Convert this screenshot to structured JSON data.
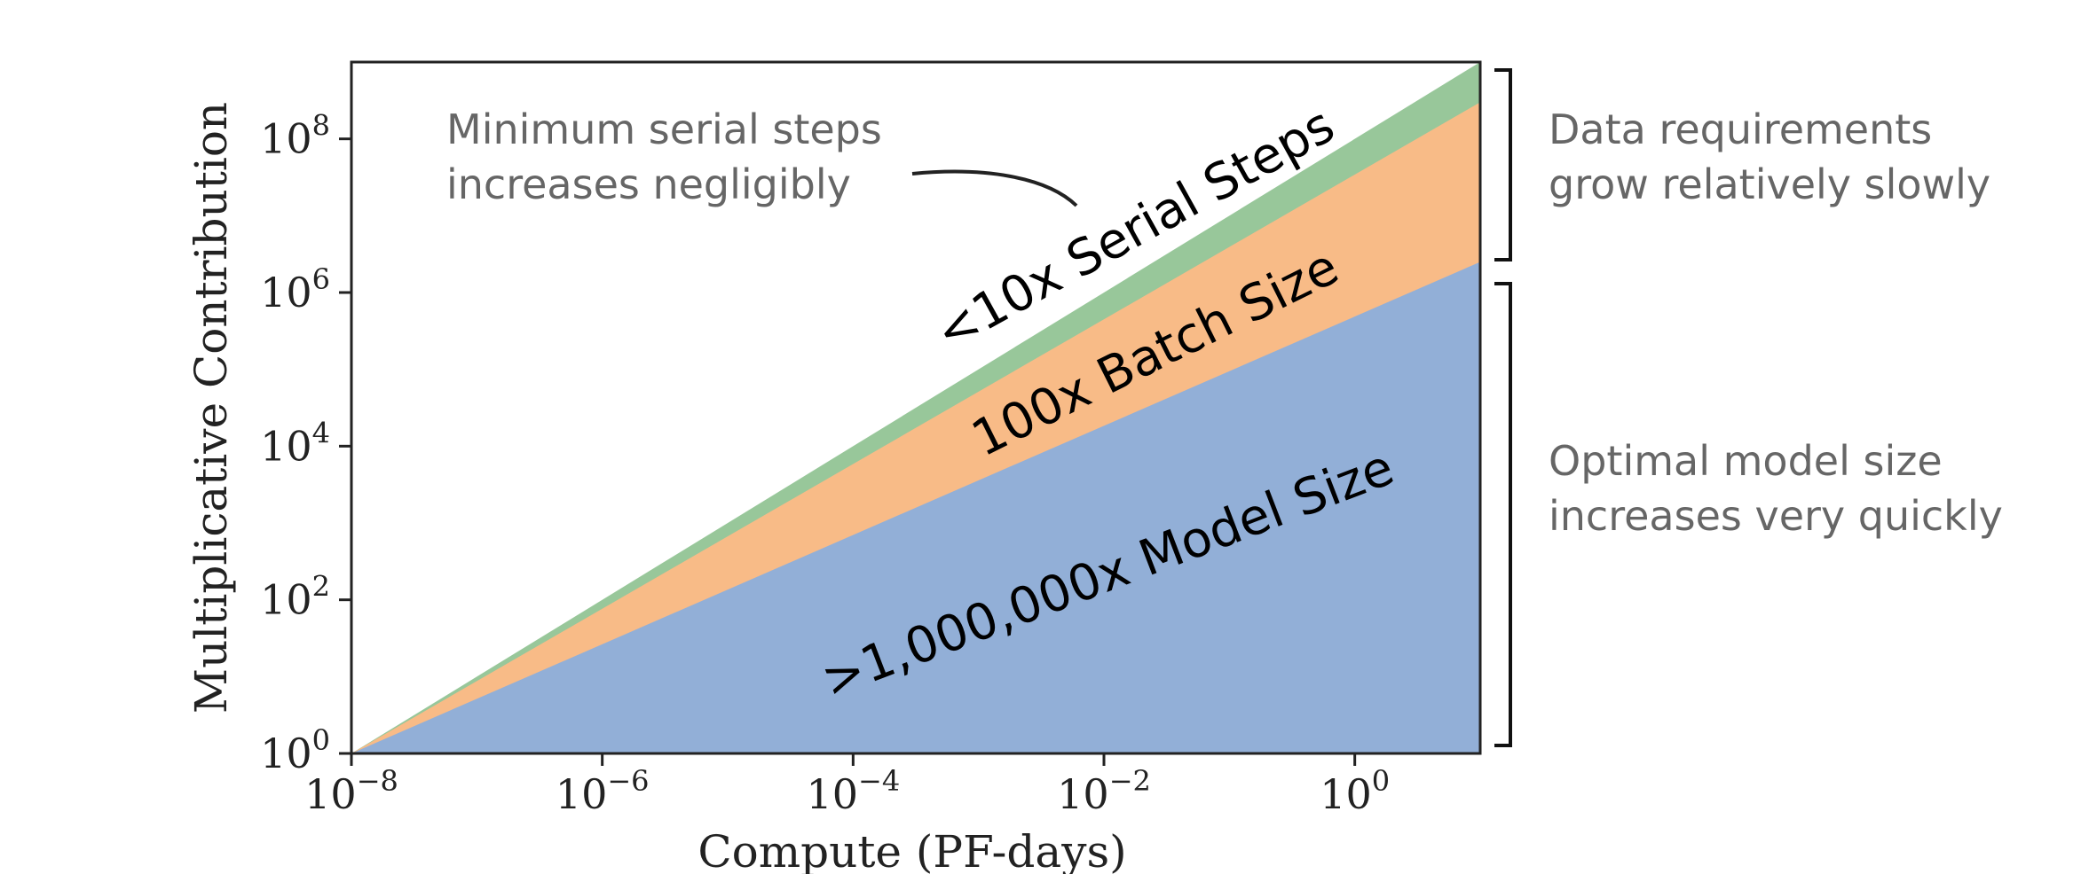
{
  "chart_data": {
    "type": "area",
    "title": "",
    "xlabel": "Compute (PF-days)",
    "ylabel": "Multiplicative Contribution",
    "x_scale": "log",
    "y_scale": "log",
    "xlim": [
      1e-08,
      10
    ],
    "ylim": [
      1,
      1000000000.0
    ],
    "x": [
      1e-08,
      10
    ],
    "x_ticks": [
      {
        "value": 1e-08,
        "base": "10",
        "exp": "−8"
      },
      {
        "value": 1e-06,
        "base": "10",
        "exp": "−6"
      },
      {
        "value": 0.0001,
        "base": "10",
        "exp": "−4"
      },
      {
        "value": 0.01,
        "base": "10",
        "exp": "−2"
      },
      {
        "value": 1,
        "base": "10",
        "exp": "0"
      }
    ],
    "y_ticks": [
      {
        "value": 1,
        "base": "10",
        "exp": "0"
      },
      {
        "value": 100,
        "base": "10",
        "exp": "2"
      },
      {
        "value": 10000,
        "base": "10",
        "exp": "4"
      },
      {
        "value": 1000000,
        "base": "10",
        "exp": "6"
      },
      {
        "value": 100000000,
        "base": "10",
        "exp": "8"
      }
    ],
    "grid": false,
    "series": [
      {
        "name": ">1,000,000x Model Size",
        "color": "#92afd7",
        "cumulative_values": [
          1,
          2500000
        ]
      },
      {
        "name": "100x Batch Size",
        "color": "#f8bb87",
        "cumulative_values": [
          1,
          300000000
        ]
      },
      {
        "name": "<10x Serial Steps",
        "color": "#98c79a",
        "cumulative_values": [
          1,
          1000000000
        ]
      }
    ],
    "annotations": {
      "serial_note": [
        "Minimum serial steps",
        "increases negligibly"
      ],
      "data_note": [
        "Data requirements",
        "grow relatively slowly"
      ],
      "model_note": [
        "Optimal model size",
        "increases very quickly"
      ]
    }
  }
}
